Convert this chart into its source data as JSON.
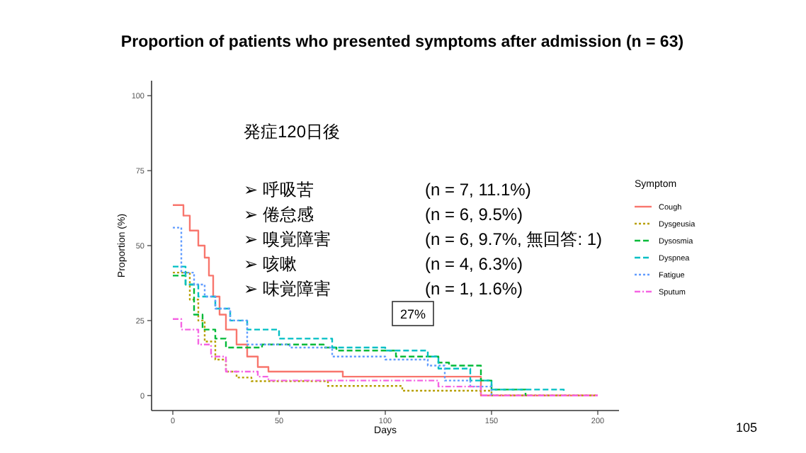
{
  "chart_data": {
    "type": "step",
    "title": "Proportion of patients who presented symptoms after admission (n = 63)",
    "xlabel": "Days",
    "ylabel": "Proportion (%)",
    "legend_title": "Symptom",
    "legend": "right",
    "grid": false,
    "xlim": [
      -10,
      210
    ],
    "xticks": [
      0,
      50,
      100,
      150,
      200
    ],
    "ylim": [
      -5,
      105
    ],
    "yticks": [
      0,
      25,
      50,
      75,
      100
    ],
    "annotations": [
      "発症120日後",
      "➢ 呼吸苦",
      "(n = 7, 11.1%)",
      "➢ 倦怠感",
      "(n = 6, 9.5%)",
      "➢ 嗅覚障害",
      "(n = 6, 9.7%, 無回答: 1)",
      "➢ 咳嗽",
      "(n = 4, 6.3%)",
      "➢ 味覚障害",
      "(n = 1, 1.6%)",
      "27%",
      "105"
    ],
    "series": [
      {
        "name": "Cough",
        "color": "#f8766d",
        "line_style": "solid",
        "x": [
          0,
          5,
          8,
          12,
          15,
          17,
          19,
          22,
          25,
          30,
          35,
          40,
          45,
          80,
          145,
          200
        ],
        "values": [
          63.5,
          60,
          55,
          50,
          46,
          40,
          33,
          27,
          22,
          17,
          13,
          9.5,
          8,
          6.3,
          0,
          0
        ]
      },
      {
        "name": "Dysgeusia",
        "color": "#b79f00",
        "line_style": "dotted",
        "x": [
          0,
          8,
          12,
          15,
          20,
          25,
          30,
          37,
          73,
          108,
          150,
          200
        ],
        "values": [
          41,
          32,
          25,
          18,
          12,
          8,
          6,
          4.8,
          3.2,
          1.6,
          0,
          0
        ]
      },
      {
        "name": "Dysosmia",
        "color": "#00ba38",
        "line_style": "dashed",
        "x": [
          0,
          6,
          10,
          14,
          20,
          25,
          42,
          71,
          77,
          105,
          125,
          130,
          145,
          150,
          166
        ],
        "values": [
          40,
          37,
          27,
          22,
          19,
          16,
          17,
          16,
          15,
          13,
          11,
          10,
          5,
          2,
          0
        ]
      },
      {
        "name": "Dyspnea",
        "color": "#00bfc4",
        "line_style": "dashed",
        "x": [
          0,
          6,
          12,
          20,
          27,
          35,
          50,
          75,
          100,
          120,
          125,
          140,
          150,
          184
        ],
        "values": [
          43,
          37,
          33,
          29,
          25,
          22,
          19,
          16,
          15,
          13,
          9,
          5,
          2,
          1.6
        ]
      },
      {
        "name": "Fatigue",
        "color": "#619cff",
        "line_style": "dotted",
        "x": [
          0,
          4,
          10,
          15,
          20,
          27,
          35,
          55,
          75,
          100,
          120,
          128,
          140,
          150
        ],
        "values": [
          56,
          41,
          37,
          33,
          29,
          25,
          17,
          16,
          13,
          12,
          10,
          5,
          3,
          0
        ]
      },
      {
        "name": "Sputum",
        "color": "#f564e3",
        "line_style": "dotdash",
        "x": [
          0,
          4,
          12,
          18,
          25,
          40,
          45,
          125,
          145,
          200
        ],
        "values": [
          25.5,
          22,
          17,
          13,
          8,
          6.3,
          5,
          3,
          0,
          0
        ]
      }
    ]
  }
}
